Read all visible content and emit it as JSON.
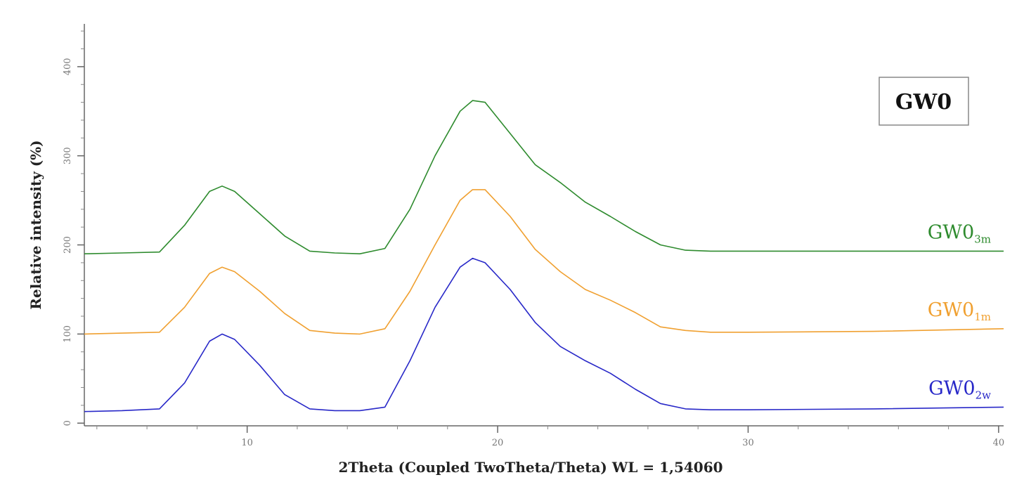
{
  "chart_data": {
    "type": "line",
    "title": "",
    "xlabel": "2Theta (Coupled TwoTheta/Theta) WL = 1,54060",
    "ylabel": "Relative intensity (%)",
    "xlim": [
      3.5,
      40.2
    ],
    "ylim": [
      -3,
      448
    ],
    "x_ticks": [
      10,
      20,
      30,
      40
    ],
    "y_ticks": [
      0,
      100,
      200,
      300,
      400
    ],
    "grid": false,
    "legend": "right",
    "annotation": "GW0",
    "series": [
      {
        "name": "GW0",
        "sub": "3m",
        "color": "#2e8b2e",
        "x": [
          3.5,
          5.0,
          6.5,
          7.5,
          8.5,
          9.0,
          9.5,
          10.5,
          11.5,
          12.5,
          13.5,
          14.5,
          15.5,
          16.5,
          17.5,
          18.5,
          19.0,
          19.5,
          20.5,
          21.5,
          22.5,
          23.5,
          24.5,
          25.5,
          26.5,
          27.5,
          28.5,
          30.0,
          35.0,
          40.2
        ],
        "y": [
          190,
          191,
          192,
          222,
          260,
          266,
          260,
          235,
          210,
          193,
          191,
          190,
          196,
          240,
          300,
          350,
          362,
          360,
          325,
          290,
          270,
          248,
          232,
          215,
          200,
          194,
          193,
          193,
          193,
          193
        ]
      },
      {
        "name": "GW0",
        "sub": "1m",
        "color": "#f0a030",
        "x": [
          3.5,
          5.0,
          6.5,
          7.5,
          8.5,
          9.0,
          9.5,
          10.5,
          11.5,
          12.5,
          13.5,
          14.5,
          15.5,
          16.5,
          17.5,
          18.5,
          19.0,
          19.5,
          20.5,
          21.5,
          22.5,
          23.5,
          24.5,
          25.5,
          26.5,
          27.5,
          28.5,
          30.0,
          35.0,
          40.2
        ],
        "y": [
          100,
          101,
          102,
          130,
          168,
          175,
          170,
          148,
          123,
          104,
          101,
          100,
          106,
          148,
          200,
          250,
          262,
          262,
          232,
          195,
          170,
          150,
          138,
          124,
          108,
          104,
          102,
          102,
          103,
          106
        ]
      },
      {
        "name": "GW0",
        "sub": "2w",
        "color": "#2828c8",
        "x": [
          3.5,
          5.0,
          6.5,
          7.5,
          8.5,
          9.0,
          9.5,
          10.5,
          11.5,
          12.5,
          13.5,
          14.5,
          15.5,
          16.5,
          17.5,
          18.5,
          19.0,
          19.5,
          20.5,
          21.5,
          22.5,
          23.5,
          24.5,
          25.5,
          26.5,
          27.5,
          28.5,
          30.0,
          35.0,
          40.2
        ],
        "y": [
          13,
          14,
          16,
          45,
          92,
          100,
          94,
          65,
          32,
          16,
          14,
          14,
          18,
          70,
          130,
          175,
          185,
          180,
          150,
          113,
          86,
          70,
          56,
          38,
          22,
          16,
          15,
          15,
          16,
          18
        ]
      }
    ]
  }
}
